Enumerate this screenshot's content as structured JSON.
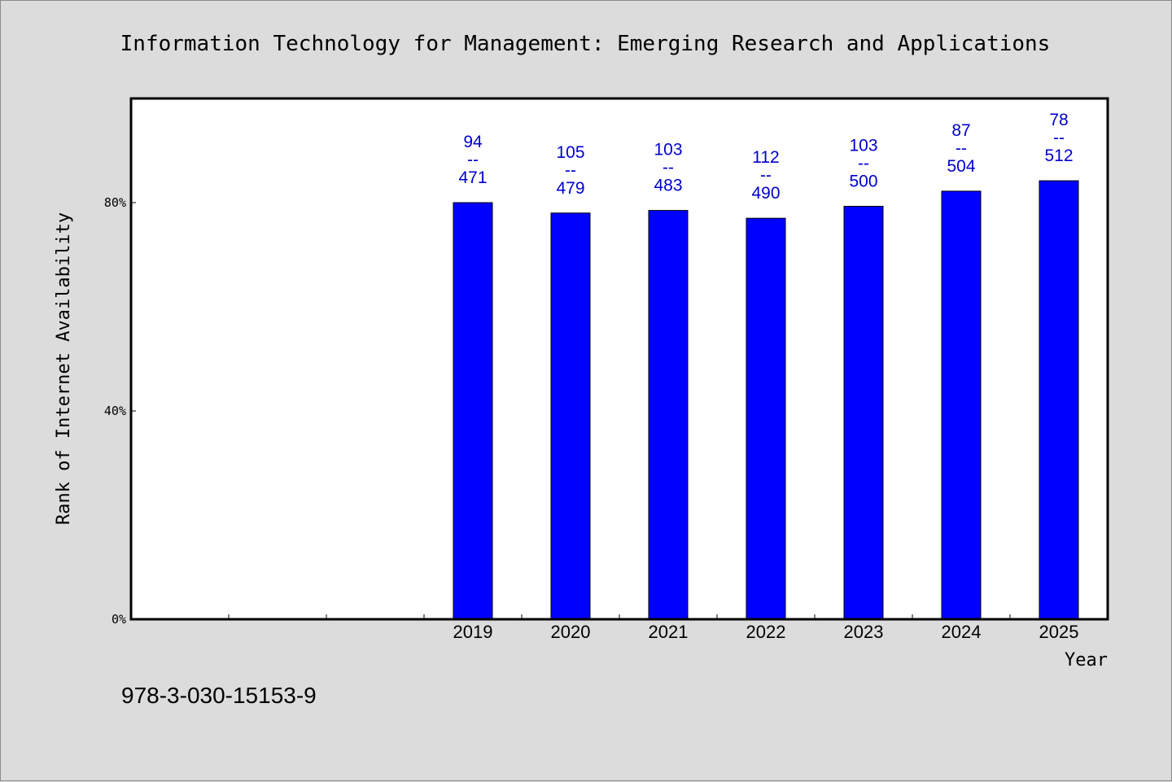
{
  "chart_data": {
    "type": "bar",
    "title": "Information Technology for Management: Emerging Research and Applications",
    "xlabel": "Year",
    "ylabel": "Rank of Internet Availability",
    "categories": [
      "",
      "",
      "",
      "2019",
      "2020",
      "2021",
      "2022",
      "2023",
      "2024",
      "2025"
    ],
    "values": [
      null,
      null,
      null,
      80,
      78,
      78.5,
      77,
      79.3,
      82.2,
      84.2
    ],
    "value_unit": "%",
    "bar_labels": [
      null,
      null,
      null,
      {
        "top": "94",
        "sep": "--",
        "bottom": "471"
      },
      {
        "top": "105",
        "sep": "--",
        "bottom": "479"
      },
      {
        "top": "103",
        "sep": "--",
        "bottom": "483"
      },
      {
        "top": "112",
        "sep": "--",
        "bottom": "490"
      },
      {
        "top": "103",
        "sep": "--",
        "bottom": "500"
      },
      {
        "top": "87",
        "sep": "--",
        "bottom": "504"
      },
      {
        "top": "78",
        "sep": "--",
        "bottom": "512"
      }
    ],
    "yticks": [
      {
        "value": 0,
        "label": "0%"
      },
      {
        "value": 40,
        "label": "40%"
      },
      {
        "value": 80,
        "label": "80%"
      }
    ],
    "ylim": [
      0,
      100
    ],
    "grid": false,
    "legend": "none",
    "colors": {
      "bar": "#0000ff",
      "bar_label": "#0000cc",
      "plot_background": "#ffffff",
      "page_background": "#dcdcdc"
    }
  },
  "footer": {
    "isbn": "978-3-030-15153-9"
  }
}
